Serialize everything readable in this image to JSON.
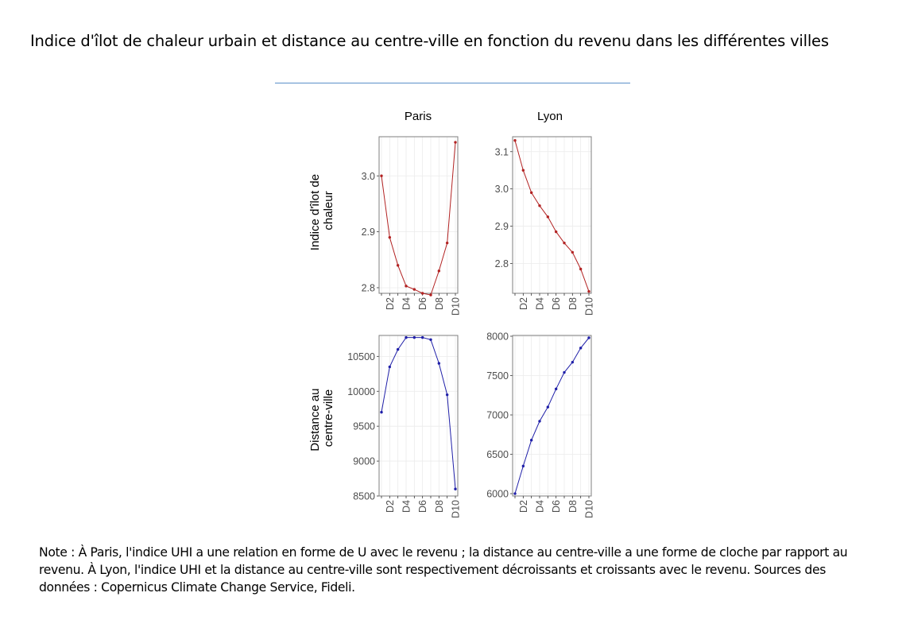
{
  "title": "Indice d'îlot de chaleur urbain et distance au centre-ville en fonction du revenu dans les différentes villes",
  "note": "Note : À Paris, l'indice UHI a une relation en forme de U avec le revenu ; la distance au centre-ville a une forme de cloche par rapport au revenu. À Lyon, l'indice UHI et la distance au centre-ville sont respectivement décroissants et croissants avec le revenu. Sources des données : Copernicus Climate Change Service, Fideli.",
  "colors": {
    "uhi_series": "#b22222",
    "distance_series": "#1f1fa8",
    "panel_border": "#7f7f7f",
    "grid": "#ebebeb",
    "accent_rule": "#5b8fc9"
  },
  "chart_data": [
    {
      "type": "line",
      "facet_column": "Paris",
      "facet_row": "Indice d'îlot de chaleur",
      "ylabel": "Indice d'îlot de chaleur",
      "x": [
        "D1",
        "D2",
        "D3",
        "D4",
        "D5",
        "D6",
        "D7",
        "D8",
        "D9",
        "D10"
      ],
      "x_tick_labels": [
        "D2",
        "D4",
        "D6",
        "D8",
        "D10"
      ],
      "y": [
        3.0,
        2.89,
        2.84,
        2.803,
        2.797,
        2.79,
        2.787,
        2.83,
        2.88,
        3.06
      ],
      "ylim": [
        2.79,
        3.07
      ],
      "yticks": [
        "2.8",
        "2.9",
        "3.0"
      ],
      "grid": true
    },
    {
      "type": "line",
      "facet_column": "Lyon",
      "facet_row": "Indice d'îlot de chaleur",
      "x": [
        "D1",
        "D2",
        "D3",
        "D4",
        "D5",
        "D6",
        "D7",
        "D8",
        "D9",
        "D10"
      ],
      "x_tick_labels": [
        "D2",
        "D4",
        "D6",
        "D8",
        "D10"
      ],
      "y": [
        3.13,
        3.05,
        2.99,
        2.955,
        2.925,
        2.885,
        2.855,
        2.83,
        2.785,
        2.725
      ],
      "ylim": [
        2.72,
        3.14
      ],
      "yticks": [
        "2.8",
        "2.9",
        "3.0",
        "3.1"
      ],
      "grid": true
    },
    {
      "type": "line",
      "facet_column": "Paris",
      "facet_row": "Distance au centre-ville",
      "ylabel": "Distance au centre-ville",
      "x": [
        "D1",
        "D2",
        "D3",
        "D4",
        "D5",
        "D6",
        "D7",
        "D8",
        "D9",
        "D10"
      ],
      "x_tick_labels": [
        "D2",
        "D4",
        "D6",
        "D8",
        "D10"
      ],
      "y": [
        9700,
        10350,
        10600,
        10770,
        10770,
        10770,
        10740,
        10400,
        9950,
        8600
      ],
      "ylim": [
        8500,
        10800
      ],
      "yticks": [
        "8500",
        "9000",
        "9500",
        "10000",
        "10500"
      ],
      "grid": true
    },
    {
      "type": "line",
      "facet_column": "Lyon",
      "facet_row": "Distance au centre-ville",
      "x": [
        "D1",
        "D2",
        "D3",
        "D4",
        "D5",
        "D6",
        "D7",
        "D8",
        "D9",
        "D10"
      ],
      "x_tick_labels": [
        "D2",
        "D4",
        "D6",
        "D8",
        "D10"
      ],
      "y": [
        6000,
        6350,
        6680,
        6920,
        7100,
        7330,
        7540,
        7670,
        7850,
        7980
      ],
      "ylim": [
        5970,
        8010
      ],
      "yticks": [
        "6000",
        "6500",
        "7000",
        "7500",
        "8000"
      ],
      "grid": true
    }
  ]
}
